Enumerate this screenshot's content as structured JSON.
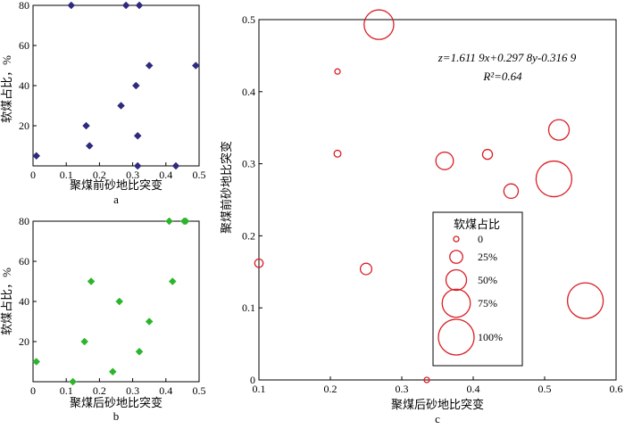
{
  "chart_data": [
    {
      "id": "a",
      "type": "scatter",
      "panel_label": "a",
      "xlabel": "聚煤前砂地比突变",
      "ylabel": "软煤占比，%",
      "xlim": [
        0,
        0.5
      ],
      "ylim": [
        0,
        80
      ],
      "xticks": [
        "0",
        "0.1",
        "0.2",
        "0.3",
        "0.4",
        "0.5"
      ],
      "yticks": [
        "20",
        "40",
        "60",
        "80"
      ],
      "marker": "diamond",
      "color": "#2e2a7e",
      "points": [
        {
          "x": 0.01,
          "y": 5
        },
        {
          "x": 0.115,
          "y": 80
        },
        {
          "x": 0.28,
          "y": 80
        },
        {
          "x": 0.32,
          "y": 80
        },
        {
          "x": 0.35,
          "y": 50
        },
        {
          "x": 0.49,
          "y": 50
        },
        {
          "x": 0.31,
          "y": 40
        },
        {
          "x": 0.265,
          "y": 30
        },
        {
          "x": 0.16,
          "y": 20
        },
        {
          "x": 0.17,
          "y": 10
        },
        {
          "x": 0.315,
          "y": 15
        },
        {
          "x": 0.315,
          "y": 0
        },
        {
          "x": 0.43,
          "y": 0
        }
      ]
    },
    {
      "id": "b",
      "type": "scatter",
      "panel_label": "b",
      "xlabel": "聚煤后砂地比突变",
      "ylabel": "软煤占比，%",
      "xlim": [
        0,
        0.5
      ],
      "ylim": [
        0,
        80
      ],
      "xticks": [
        "0",
        "0.1",
        "0.2",
        "0.3",
        "0.4",
        "0.5"
      ],
      "yticks": [
        "20",
        "40",
        "60",
        "80"
      ],
      "marker": "diamond",
      "color": "#2bb52b",
      "points": [
        {
          "x": 0.01,
          "y": 10
        },
        {
          "x": 0.12,
          "y": 0
        },
        {
          "x": 0.155,
          "y": 20
        },
        {
          "x": 0.175,
          "y": 50
        },
        {
          "x": 0.24,
          "y": 5
        },
        {
          "x": 0.26,
          "y": 40
        },
        {
          "x": 0.32,
          "y": 15
        },
        {
          "x": 0.35,
          "y": 30
        },
        {
          "x": 0.41,
          "y": 80
        },
        {
          "x": 0.42,
          "y": 50
        },
        {
          "x": 0.455,
          "y": 80
        },
        {
          "x": 0.46,
          "y": 80
        }
      ]
    },
    {
      "id": "c",
      "type": "bubble",
      "panel_label": "c",
      "xlabel": "聚煤后砂地比突变",
      "ylabel": "聚煤前砂地比突变",
      "xlim": [
        0.1,
        0.6
      ],
      "ylim": [
        0,
        0.5
      ],
      "xticks": [
        "0.1",
        "0.2",
        "0.3",
        "0.4",
        "0.5",
        "0.6"
      ],
      "yticks": [
        "0",
        "0.1",
        "0.2",
        "0.3",
        "0.4",
        "0.5"
      ],
      "color": "#d91f26",
      "equation": "z=1.611 9x+0.297 8y-0.316 9",
      "r2_label": "R²=0.64",
      "points": [
        {
          "x": 0.268,
          "y": 0.493,
          "size": 80
        },
        {
          "x": 0.21,
          "y": 0.428,
          "size": 0
        },
        {
          "x": 0.52,
          "y": 0.347,
          "size": 50
        },
        {
          "x": 0.36,
          "y": 0.304,
          "size": 40
        },
        {
          "x": 0.21,
          "y": 0.314,
          "size": 5
        },
        {
          "x": 0.42,
          "y": 0.313,
          "size": 15
        },
        {
          "x": 0.453,
          "y": 0.262,
          "size": 30
        },
        {
          "x": 0.513,
          "y": 0.279,
          "size": 100
        },
        {
          "x": 0.1,
          "y": 0.162,
          "size": 10
        },
        {
          "x": 0.25,
          "y": 0.154,
          "size": 20
        },
        {
          "x": 0.557,
          "y": 0.11,
          "size": 100
        },
        {
          "x": 0.335,
          "y": 0.0,
          "size": 0
        }
      ],
      "legend": {
        "title": "软煤占比",
        "entries": [
          {
            "label": "0",
            "size": 0
          },
          {
            "label": "25%",
            "size": 25
          },
          {
            "label": "50%",
            "size": 50
          },
          {
            "label": "75%",
            "size": 75
          },
          {
            "label": "100%",
            "size": 100
          }
        ]
      }
    }
  ]
}
